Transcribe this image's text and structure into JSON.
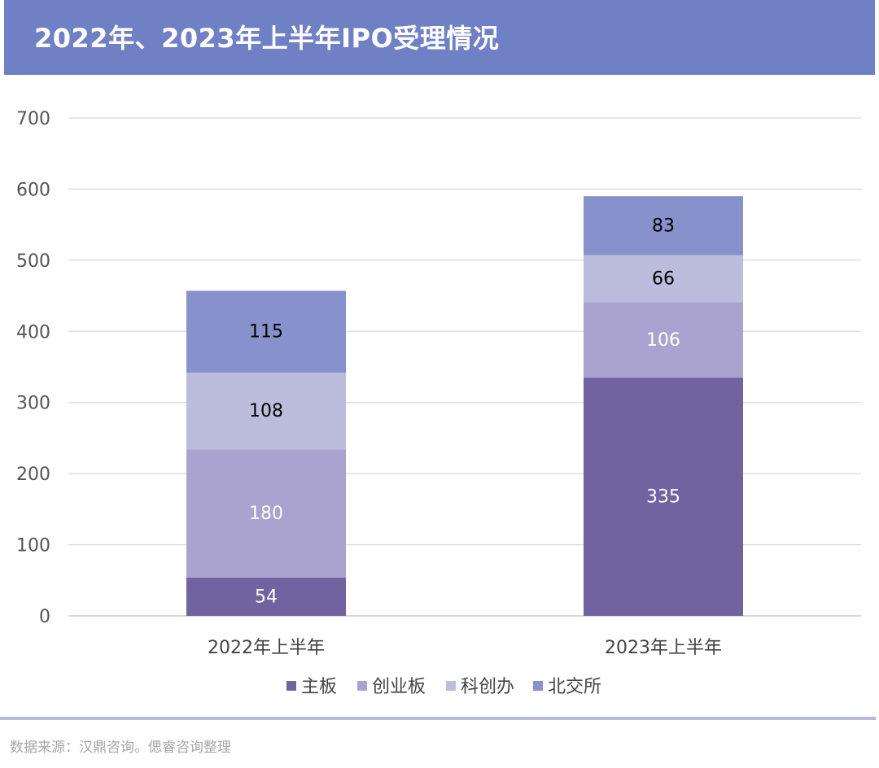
{
  "header": {
    "title": "2022年、2023年上半年IPO受理情况"
  },
  "chart_data": {
    "type": "bar",
    "stacked": true,
    "categories": [
      "2022年上半年",
      "2023年上半年"
    ],
    "series": [
      {
        "name": "主板",
        "values": [
          54,
          335
        ],
        "color": "#7162a0",
        "label_color": "#ffffff"
      },
      {
        "name": "创业板",
        "values": [
          180,
          106
        ],
        "color": "#aaa3d0",
        "label_color": "#ffffff"
      },
      {
        "name": "科创办",
        "values": [
          108,
          66
        ],
        "color": "#bcbddc",
        "label_color": "#000000"
      },
      {
        "name": "北交所",
        "values": [
          115,
          83
        ],
        "color": "#8791cc",
        "label_color": "#000000"
      }
    ],
    "ylim": [
      0,
      700
    ],
    "yticks": [
      0,
      100,
      200,
      300,
      400,
      500,
      600,
      700
    ],
    "grid": true,
    "legend_position": "bottom"
  },
  "footer": {
    "source": "数据来源：汉鼎咨询。偲睿咨询整理"
  }
}
